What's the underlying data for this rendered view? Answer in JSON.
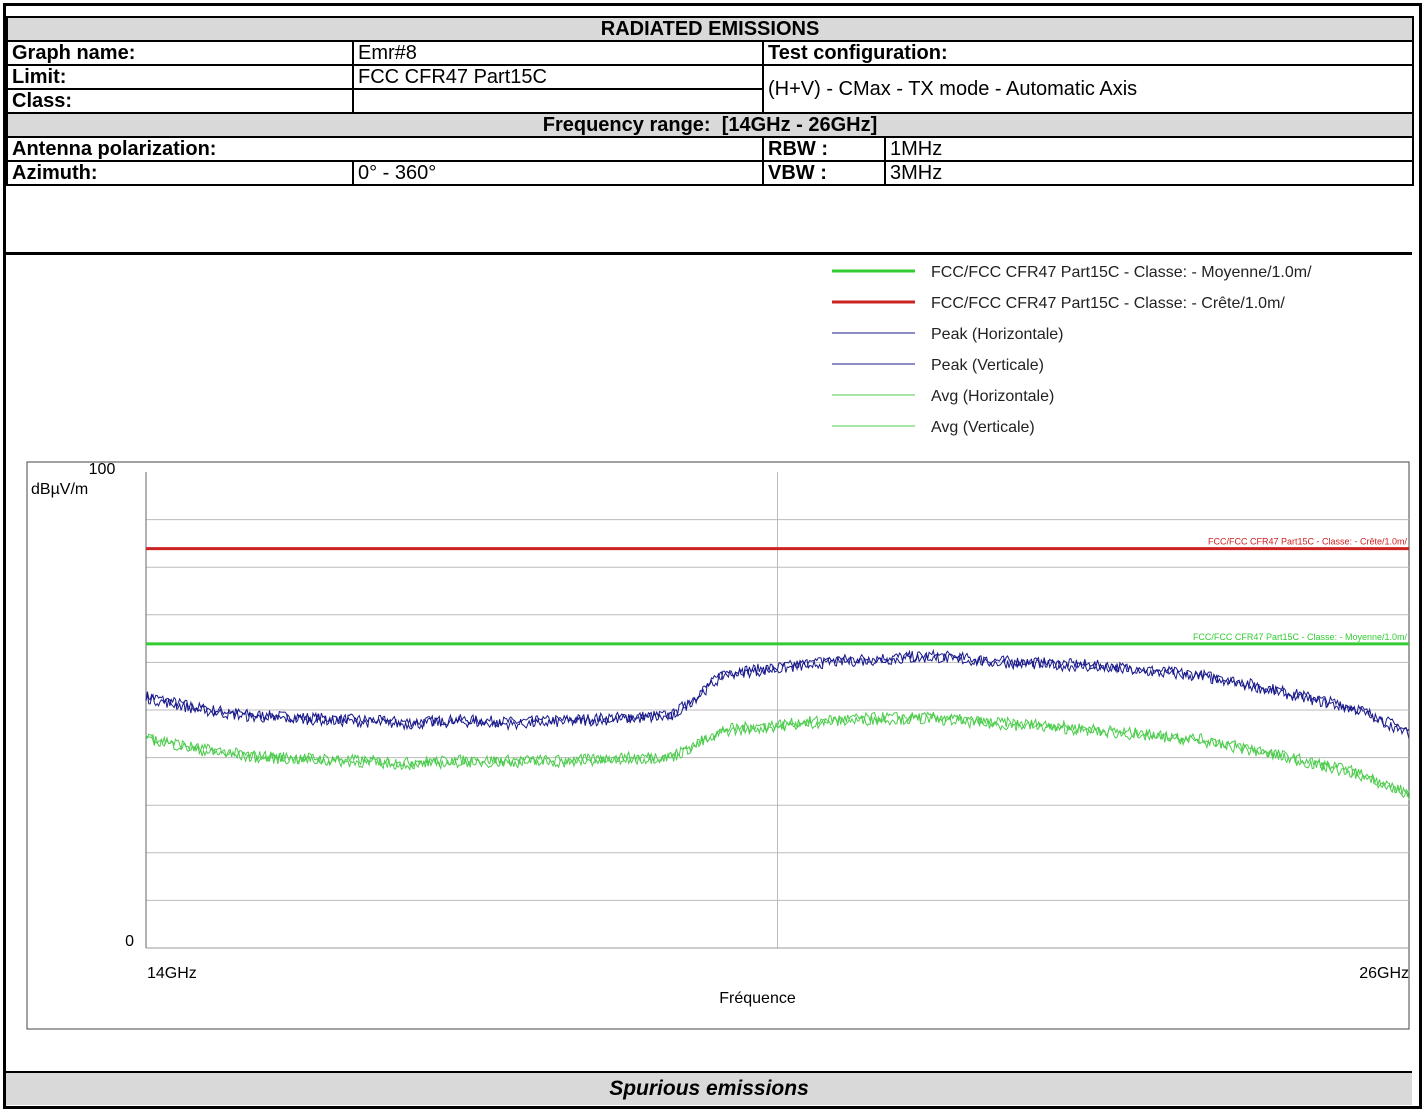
{
  "header": {
    "title": "RADIATED EMISSIONS",
    "graph_name_label": "Graph name:",
    "graph_name_value": "Emr#8",
    "test_config_label": "Test configuration:",
    "limit_label": "Limit:",
    "limit_value": "FCC CFR47 Part15C",
    "class_label": "Class:",
    "class_value": "",
    "test_config_value": "(H+V) - CMax - TX mode - Automatic Axis",
    "freq_range_label": "Frequency range:",
    "freq_range_value": "[14GHz - 26GHz]",
    "antenna_label": "Antenna polarization:",
    "antenna_value": "",
    "rbw_label": "RBW :",
    "rbw_value": "1MHz",
    "azimuth_label": "Azimuth:",
    "azimuth_value": "0° - 360°",
    "vbw_label": "VBW :",
    "vbw_value": "3MHz"
  },
  "footer": {
    "caption": "Spurious emissions"
  },
  "chart_data": {
    "type": "line",
    "title": "",
    "xlabel": "Fréquence",
    "ylabel": "dBµV/m",
    "xlim": [
      14,
      26
    ],
    "ylim": [
      0,
      100
    ],
    "x_unit": "GHz",
    "x_tick_labels": [
      "14GHz",
      "26GHz"
    ],
    "y_tick_labels": [
      "100",
      "0"
    ],
    "grid": true,
    "legend_position": "top-right",
    "series": [
      {
        "name": "FCC/FCC CFR47 Part15C - Classe: - Moyenne/1.0m/",
        "color": "#33cc33",
        "kind": "limit",
        "x": [
          14,
          26
        ],
        "y": [
          63.9,
          63.9
        ]
      },
      {
        "name": "FCC/FCC CFR47 Part15C - Classe: - Crête/1.0m/",
        "color": "#cc2222",
        "kind": "limit",
        "x": [
          14,
          26
        ],
        "y": [
          83.9,
          83.9
        ]
      },
      {
        "name": "Peak (Horizontale)",
        "color": "#1a1a8c",
        "kind": "trace",
        "x": [
          14,
          14.5,
          15,
          15.5,
          16,
          16.5,
          17,
          17.5,
          18,
          18.5,
          19,
          19.5,
          20,
          20.5,
          21,
          21.5,
          22,
          22.5,
          23,
          23.5,
          24,
          24.5,
          25,
          25.5,
          26
        ],
        "y": [
          53,
          50.5,
          49,
          48.5,
          48,
          47.5,
          48,
          47.5,
          48,
          48.5,
          49,
          58,
          59,
          60.5,
          61,
          61.5,
          60.5,
          60,
          59.5,
          58.5,
          57.5,
          55.5,
          53,
          50.5,
          45.5
        ]
      },
      {
        "name": "Peak (Verticale)",
        "color": "#1a1a8c",
        "kind": "trace",
        "x": [
          14,
          14.5,
          15,
          15.5,
          16,
          16.5,
          17,
          17.5,
          18,
          18.5,
          19,
          19.5,
          20,
          20.5,
          21,
          21.5,
          22,
          22.5,
          23,
          23.5,
          24,
          24.5,
          25,
          25.5,
          26
        ],
        "y": [
          52.5,
          50,
          48.5,
          48,
          47.5,
          47,
          47.5,
          47,
          47.5,
          48,
          48.5,
          57.5,
          58.5,
          60,
          60.5,
          61,
          60,
          59.5,
          59,
          58,
          57,
          55,
          52.5,
          50,
          45
        ]
      },
      {
        "name": "Avg (Horizontale)",
        "color": "#4ccc4c",
        "kind": "trace",
        "x": [
          14,
          14.5,
          15,
          15.5,
          16,
          16.5,
          17,
          17.5,
          18,
          18.5,
          19,
          19.5,
          20,
          20.5,
          21,
          21.5,
          22,
          22.5,
          23,
          23.5,
          24,
          24.5,
          25,
          25.5,
          26
        ],
        "y": [
          44.5,
          42,
          40.5,
          40,
          39.5,
          39,
          39.5,
          39.5,
          39.5,
          40,
          40.5,
          46,
          47,
          48,
          48.5,
          48.5,
          47.5,
          47,
          46,
          45,
          44,
          42,
          39.5,
          37,
          32.5
        ]
      },
      {
        "name": "Avg (Verticale)",
        "color": "#4ccc4c",
        "kind": "trace",
        "x": [
          14,
          14.5,
          15,
          15.5,
          16,
          16.5,
          17,
          17.5,
          18,
          18.5,
          19,
          19.5,
          20,
          20.5,
          21,
          21.5,
          22,
          22.5,
          23,
          23.5,
          24,
          24.5,
          25,
          25.5,
          26
        ],
        "y": [
          44,
          41.5,
          40,
          39.5,
          39,
          38.5,
          39,
          39,
          39,
          39.5,
          40,
          45.5,
          46.5,
          47.5,
          48,
          48,
          47,
          46.5,
          45.5,
          44.5,
          43.5,
          41.5,
          39,
          36.5,
          32
        ]
      }
    ],
    "limit_labels": [
      {
        "text": "FCC/FCC CFR47 Part15C - Classe: - Crête/1.0m/",
        "y": 83.9,
        "color": "#cc2222"
      },
      {
        "text": "FCC/FCC CFR47 Part15C - Classe: - Moyenne/1.0m/",
        "y": 63.9,
        "color": "#33cc33"
      }
    ]
  }
}
